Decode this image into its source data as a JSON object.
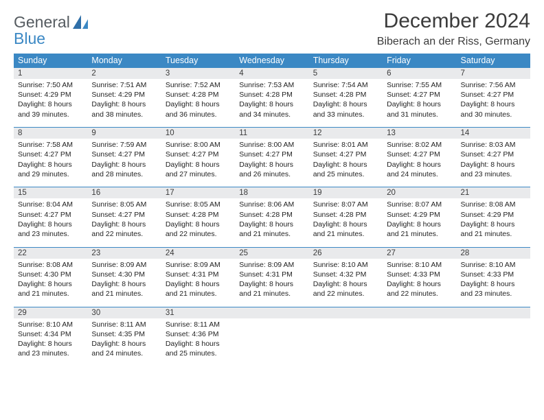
{
  "header": {
    "logo_line1": "General",
    "logo_line2": "Blue",
    "title": "December 2024",
    "location": "Biberach an der Riss, Germany"
  },
  "colors": {
    "accent": "#3b88c4",
    "daynum_bg": "#e9eaec",
    "text_dark": "#3b3b3b",
    "logo_gray": "#555b60"
  },
  "calendar": {
    "day_labels": [
      "Sunday",
      "Monday",
      "Tuesday",
      "Wednesday",
      "Thursday",
      "Friday",
      "Saturday"
    ],
    "weeks": [
      [
        {
          "num": "1",
          "sunrise": "Sunrise: 7:50 AM",
          "sunset": "Sunset: 4:29 PM",
          "daylight1": "Daylight: 8 hours",
          "daylight2": "and 39 minutes."
        },
        {
          "num": "2",
          "sunrise": "Sunrise: 7:51 AM",
          "sunset": "Sunset: 4:29 PM",
          "daylight1": "Daylight: 8 hours",
          "daylight2": "and 38 minutes."
        },
        {
          "num": "3",
          "sunrise": "Sunrise: 7:52 AM",
          "sunset": "Sunset: 4:28 PM",
          "daylight1": "Daylight: 8 hours",
          "daylight2": "and 36 minutes."
        },
        {
          "num": "4",
          "sunrise": "Sunrise: 7:53 AM",
          "sunset": "Sunset: 4:28 PM",
          "daylight1": "Daylight: 8 hours",
          "daylight2": "and 34 minutes."
        },
        {
          "num": "5",
          "sunrise": "Sunrise: 7:54 AM",
          "sunset": "Sunset: 4:28 PM",
          "daylight1": "Daylight: 8 hours",
          "daylight2": "and 33 minutes."
        },
        {
          "num": "6",
          "sunrise": "Sunrise: 7:55 AM",
          "sunset": "Sunset: 4:27 PM",
          "daylight1": "Daylight: 8 hours",
          "daylight2": "and 31 minutes."
        },
        {
          "num": "7",
          "sunrise": "Sunrise: 7:56 AM",
          "sunset": "Sunset: 4:27 PM",
          "daylight1": "Daylight: 8 hours",
          "daylight2": "and 30 minutes."
        }
      ],
      [
        {
          "num": "8",
          "sunrise": "Sunrise: 7:58 AM",
          "sunset": "Sunset: 4:27 PM",
          "daylight1": "Daylight: 8 hours",
          "daylight2": "and 29 minutes."
        },
        {
          "num": "9",
          "sunrise": "Sunrise: 7:59 AM",
          "sunset": "Sunset: 4:27 PM",
          "daylight1": "Daylight: 8 hours",
          "daylight2": "and 28 minutes."
        },
        {
          "num": "10",
          "sunrise": "Sunrise: 8:00 AM",
          "sunset": "Sunset: 4:27 PM",
          "daylight1": "Daylight: 8 hours",
          "daylight2": "and 27 minutes."
        },
        {
          "num": "11",
          "sunrise": "Sunrise: 8:00 AM",
          "sunset": "Sunset: 4:27 PM",
          "daylight1": "Daylight: 8 hours",
          "daylight2": "and 26 minutes."
        },
        {
          "num": "12",
          "sunrise": "Sunrise: 8:01 AM",
          "sunset": "Sunset: 4:27 PM",
          "daylight1": "Daylight: 8 hours",
          "daylight2": "and 25 minutes."
        },
        {
          "num": "13",
          "sunrise": "Sunrise: 8:02 AM",
          "sunset": "Sunset: 4:27 PM",
          "daylight1": "Daylight: 8 hours",
          "daylight2": "and 24 minutes."
        },
        {
          "num": "14",
          "sunrise": "Sunrise: 8:03 AM",
          "sunset": "Sunset: 4:27 PM",
          "daylight1": "Daylight: 8 hours",
          "daylight2": "and 23 minutes."
        }
      ],
      [
        {
          "num": "15",
          "sunrise": "Sunrise: 8:04 AM",
          "sunset": "Sunset: 4:27 PM",
          "daylight1": "Daylight: 8 hours",
          "daylight2": "and 23 minutes."
        },
        {
          "num": "16",
          "sunrise": "Sunrise: 8:05 AM",
          "sunset": "Sunset: 4:27 PM",
          "daylight1": "Daylight: 8 hours",
          "daylight2": "and 22 minutes."
        },
        {
          "num": "17",
          "sunrise": "Sunrise: 8:05 AM",
          "sunset": "Sunset: 4:28 PM",
          "daylight1": "Daylight: 8 hours",
          "daylight2": "and 22 minutes."
        },
        {
          "num": "18",
          "sunrise": "Sunrise: 8:06 AM",
          "sunset": "Sunset: 4:28 PM",
          "daylight1": "Daylight: 8 hours",
          "daylight2": "and 21 minutes."
        },
        {
          "num": "19",
          "sunrise": "Sunrise: 8:07 AM",
          "sunset": "Sunset: 4:28 PM",
          "daylight1": "Daylight: 8 hours",
          "daylight2": "and 21 minutes."
        },
        {
          "num": "20",
          "sunrise": "Sunrise: 8:07 AM",
          "sunset": "Sunset: 4:29 PM",
          "daylight1": "Daylight: 8 hours",
          "daylight2": "and 21 minutes."
        },
        {
          "num": "21",
          "sunrise": "Sunrise: 8:08 AM",
          "sunset": "Sunset: 4:29 PM",
          "daylight1": "Daylight: 8 hours",
          "daylight2": "and 21 minutes."
        }
      ],
      [
        {
          "num": "22",
          "sunrise": "Sunrise: 8:08 AM",
          "sunset": "Sunset: 4:30 PM",
          "daylight1": "Daylight: 8 hours",
          "daylight2": "and 21 minutes."
        },
        {
          "num": "23",
          "sunrise": "Sunrise: 8:09 AM",
          "sunset": "Sunset: 4:30 PM",
          "daylight1": "Daylight: 8 hours",
          "daylight2": "and 21 minutes."
        },
        {
          "num": "24",
          "sunrise": "Sunrise: 8:09 AM",
          "sunset": "Sunset: 4:31 PM",
          "daylight1": "Daylight: 8 hours",
          "daylight2": "and 21 minutes."
        },
        {
          "num": "25",
          "sunrise": "Sunrise: 8:09 AM",
          "sunset": "Sunset: 4:31 PM",
          "daylight1": "Daylight: 8 hours",
          "daylight2": "and 21 minutes."
        },
        {
          "num": "26",
          "sunrise": "Sunrise: 8:10 AM",
          "sunset": "Sunset: 4:32 PM",
          "daylight1": "Daylight: 8 hours",
          "daylight2": "and 22 minutes."
        },
        {
          "num": "27",
          "sunrise": "Sunrise: 8:10 AM",
          "sunset": "Sunset: 4:33 PM",
          "daylight1": "Daylight: 8 hours",
          "daylight2": "and 22 minutes."
        },
        {
          "num": "28",
          "sunrise": "Sunrise: 8:10 AM",
          "sunset": "Sunset: 4:33 PM",
          "daylight1": "Daylight: 8 hours",
          "daylight2": "and 23 minutes."
        }
      ],
      [
        {
          "num": "29",
          "sunrise": "Sunrise: 8:10 AM",
          "sunset": "Sunset: 4:34 PM",
          "daylight1": "Daylight: 8 hours",
          "daylight2": "and 23 minutes."
        },
        {
          "num": "30",
          "sunrise": "Sunrise: 8:11 AM",
          "sunset": "Sunset: 4:35 PM",
          "daylight1": "Daylight: 8 hours",
          "daylight2": "and 24 minutes."
        },
        {
          "num": "31",
          "sunrise": "Sunrise: 8:11 AM",
          "sunset": "Sunset: 4:36 PM",
          "daylight1": "Daylight: 8 hours",
          "daylight2": "and 25 minutes."
        },
        {
          "num": "",
          "sunrise": "",
          "sunset": "",
          "daylight1": "",
          "daylight2": ""
        },
        {
          "num": "",
          "sunrise": "",
          "sunset": "",
          "daylight1": "",
          "daylight2": ""
        },
        {
          "num": "",
          "sunrise": "",
          "sunset": "",
          "daylight1": "",
          "daylight2": ""
        },
        {
          "num": "",
          "sunrise": "",
          "sunset": "",
          "daylight1": "",
          "daylight2": ""
        }
      ]
    ]
  }
}
